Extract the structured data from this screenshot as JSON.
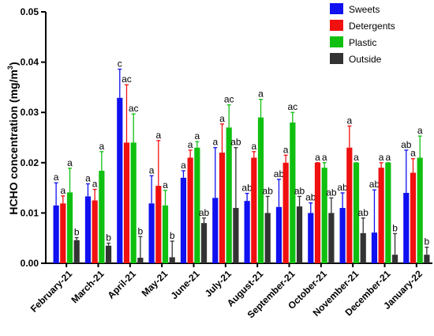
{
  "chart_data": {
    "type": "bar",
    "ylabel": "HCHO concentration (mg/m",
    "ylabel_superscript": "3",
    "ylabel_close": ")",
    "ylim": [
      0,
      0.05
    ],
    "yticks": [
      "0.00",
      "0.01",
      "0.02",
      "0.03",
      "0.04",
      "0.05"
    ],
    "ytick_values": [
      0,
      0.01,
      0.02,
      0.03,
      0.04,
      0.05
    ],
    "categories": [
      "February-21",
      "March-21",
      "April-21",
      "May-21",
      "June-21",
      "July-21",
      "August-21",
      "September-21",
      "October-21",
      "November-21",
      "December-21",
      "January-22"
    ],
    "legend_position": "top-right",
    "series": [
      {
        "name": "Sweets",
        "color": "#1010f0",
        "values": [
          0.0115,
          0.0133,
          0.0329,
          0.0119,
          0.017,
          0.013,
          0.0124,
          0.0112,
          0.01,
          0.011,
          0.0061,
          0.014
        ],
        "errors": [
          0.0045,
          0.0025,
          0.0057,
          0.0055,
          0.0014,
          0.01,
          0.0015,
          0.0055,
          0.002,
          0.003,
          0.0085,
          0.0085
        ],
        "letters": [
          "a",
          "a",
          "c",
          "a",
          "a",
          "a",
          "ab",
          "ab",
          "ab",
          "ab",
          "ab",
          "ab"
        ]
      },
      {
        "name": "Detergents",
        "color": "#f01010",
        "values": [
          0.0119,
          0.0125,
          0.024,
          0.0154,
          0.021,
          0.022,
          0.021,
          0.02,
          0.02,
          0.023,
          0.019,
          0.018
        ],
        "errors": [
          0.0015,
          0.0022,
          0.0115,
          0.009,
          0.0015,
          0.0057,
          0.0012,
          0.0015,
          0.0,
          0.0043,
          0.001,
          0.0028
        ],
        "letters": [
          "a",
          "a",
          "ac",
          "a",
          "a",
          "a",
          "a",
          "a",
          "a",
          "a",
          "a",
          "a"
        ]
      },
      {
        "name": "Plastic",
        "color": "#10c010",
        "values": [
          0.0141,
          0.0184,
          0.024,
          0.0115,
          0.023,
          0.027,
          0.029,
          0.028,
          0.019,
          0.02,
          0.02,
          0.021
        ],
        "errors": [
          0.0048,
          0.0038,
          0.0057,
          0.003,
          0.0012,
          0.0045,
          0.0036,
          0.002,
          0.001,
          0.0,
          0.0,
          0.0043
        ],
        "letters": [
          "a",
          "a",
          "ac",
          "a",
          "a",
          "ac",
          "a",
          "ac",
          "a",
          "a",
          "a",
          "a"
        ]
      },
      {
        "name": "Outside",
        "color": "#333333",
        "values": [
          0.0046,
          0.0035,
          0.0011,
          0.0012,
          0.008,
          0.011,
          0.01,
          0.0113,
          0.01,
          0.006,
          0.0017,
          0.0017
        ],
        "errors": [
          0.0005,
          0.0005,
          0.0042,
          0.0032,
          0.001,
          0.012,
          0.0033,
          0.002,
          0.003,
          0.003,
          0.0042,
          0.0015
        ],
        "letters": [
          "b",
          "b",
          "b",
          "b",
          "ab",
          "ab",
          "ab",
          "ab",
          "ab",
          "ab",
          "b",
          "b"
        ]
      }
    ]
  }
}
